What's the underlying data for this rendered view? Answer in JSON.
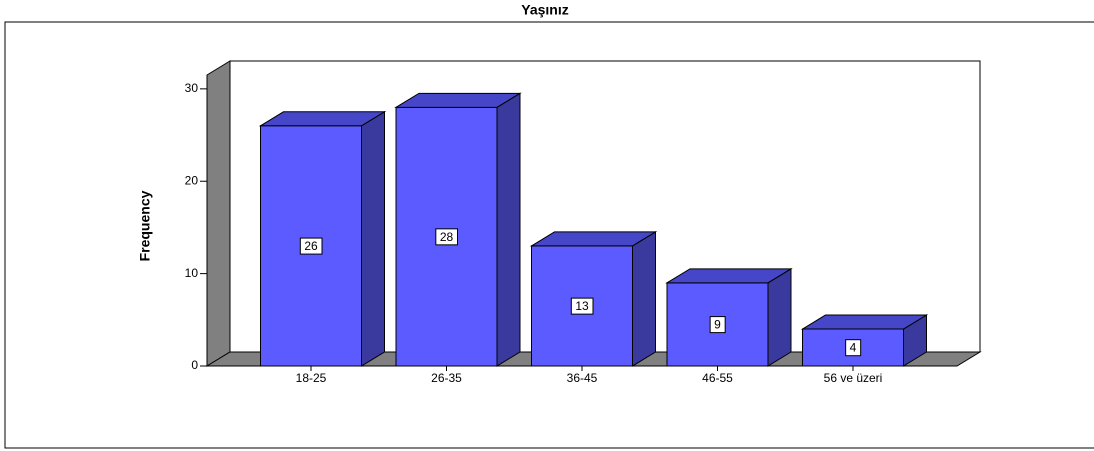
{
  "chart_data": {
    "type": "bar3d",
    "title": "Yaşınız",
    "ylabel": "Frequency",
    "categories": [
      "18-25",
      "26-35",
      "36-45",
      "46-55",
      "56 ve üzeri"
    ],
    "values": [
      26,
      28,
      13,
      9,
      4
    ],
    "color": "#5b5bff",
    "ylim": [
      0,
      31.5
    ],
    "yticks": [
      0,
      10,
      20,
      30
    ]
  }
}
